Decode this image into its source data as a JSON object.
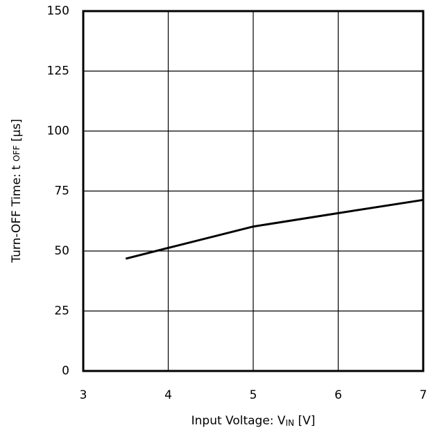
{
  "chart_data": {
    "type": "line",
    "xlabel": [
      "Input Voltage: V",
      "IN",
      " [V]"
    ],
    "ylabel": [
      "Turn-OFF Time: t ",
      "OFF",
      " [µs]"
    ],
    "x": [
      3.5,
      4,
      5,
      6,
      7
    ],
    "series": [
      {
        "color": "#000000",
        "values": [
          46.8,
          51.3,
          60.2,
          65.8,
          71.3
        ]
      }
    ],
    "xlim": [
      3,
      7
    ],
    "xticks": [
      3,
      4,
      5,
      6,
      7
    ],
    "ylim": [
      0,
      150
    ],
    "yticks": [
      0,
      25,
      50,
      75,
      100,
      125,
      150
    ],
    "grid": true
  }
}
